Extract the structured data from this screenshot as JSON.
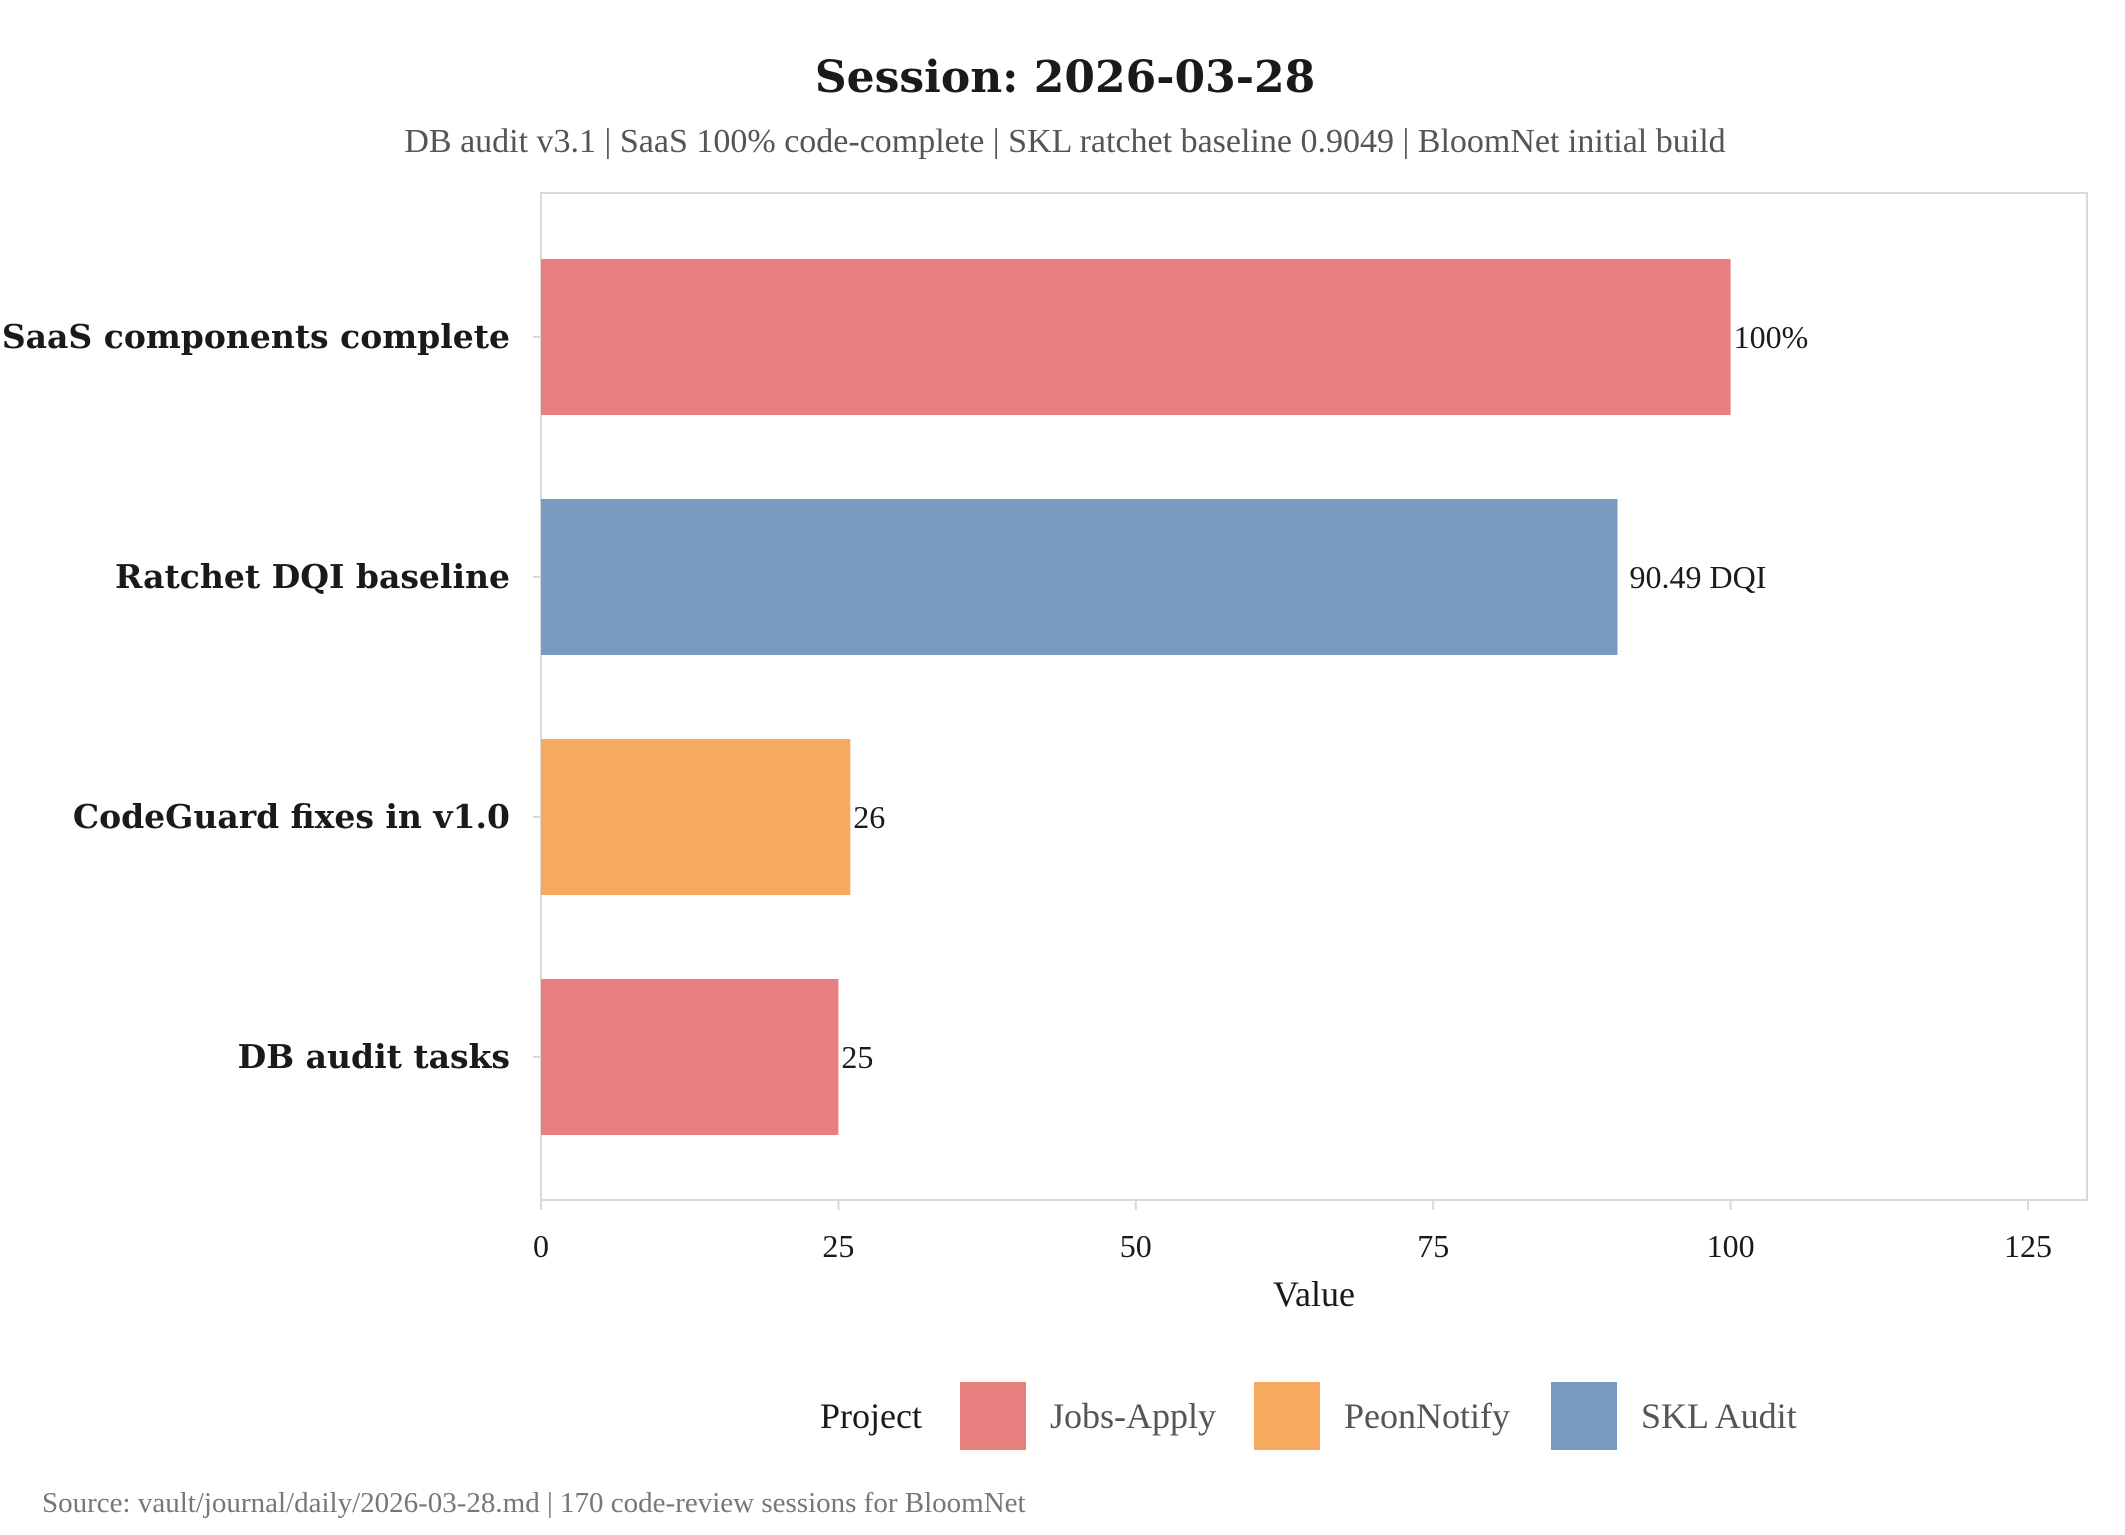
{
  "chart_data": {
    "type": "bar",
    "orientation": "horizontal",
    "title": "Session: 2026-03-28",
    "subtitle": "DB audit v3.1 | SaaS 100% code-complete | SKL ratchet baseline 0.9049 | BloomNet initial build",
    "xlabel": "Value",
    "ylabel": "",
    "xlim": [
      0,
      130
    ],
    "xticks": [
      0,
      25,
      50,
      75,
      100,
      125
    ],
    "grid": false,
    "categories": [
      "SaaS components complete",
      "Ratchet DQI baseline",
      "CodeGuard fixes in v1.0",
      "DB audit tasks"
    ],
    "values": [
      100,
      90.49,
      26,
      25
    ],
    "data_labels": [
      "100%",
      "90.49 DQI",
      "26",
      "25"
    ],
    "groups": [
      "Jobs-Apply",
      "SKL Audit",
      "PeonNotify",
      "Jobs-Apply"
    ],
    "legend": {
      "title": "Project",
      "placement": "bottom",
      "entries": [
        {
          "label": "Jobs-Apply",
          "color": "#E88080"
        },
        {
          "label": "PeonNotify",
          "color": "#F5AA60"
        },
        {
          "label": "SKL Audit",
          "color": "#7A9BBF"
        }
      ]
    },
    "caption": "Source: vault/journal/daily/2026-03-28.md | 170 code-review sessions for BloomNet"
  }
}
